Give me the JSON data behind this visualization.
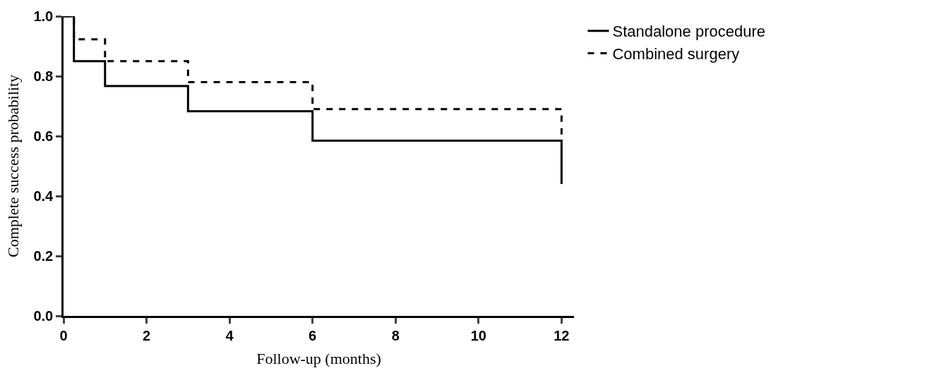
{
  "chart_data": {
    "type": "step",
    "xlabel": "Follow-up (months)",
    "ylabel": "Complete success probability",
    "series": [
      {
        "name": "Standalone procedure",
        "color": "#000000",
        "line_style": "solid",
        "x": [
          0,
          0.25,
          1,
          3,
          6,
          12,
          12
        ],
        "values": [
          1.0,
          0.85,
          0.767,
          0.683,
          0.585,
          0.585,
          0.44
        ]
      },
      {
        "name": "Combined surgery",
        "color": "#000000",
        "line_style": "dashed",
        "x": [
          0,
          0.25,
          1,
          3,
          6,
          12,
          12
        ],
        "values": [
          1.0,
          0.923,
          0.85,
          0.78,
          0.69,
          0.69,
          0.6
        ]
      }
    ],
    "xlim": [
      0,
      12.3
    ],
    "xticks": [
      0,
      2,
      4,
      6,
      8,
      10,
      12
    ],
    "ylim": [
      0,
      1.0
    ],
    "yticks": [
      {
        "value": 0,
        "label": "0.0"
      },
      {
        "value": 0.2,
        "label": "0.2"
      },
      {
        "value": 0.4,
        "label": "0.4"
      },
      {
        "value": 0.6,
        "label": "0.6"
      },
      {
        "value": 0.8,
        "label": "0.8"
      },
      {
        "value": 1.0,
        "label": "1.0"
      }
    ],
    "legend": "top right",
    "marker": "none"
  }
}
